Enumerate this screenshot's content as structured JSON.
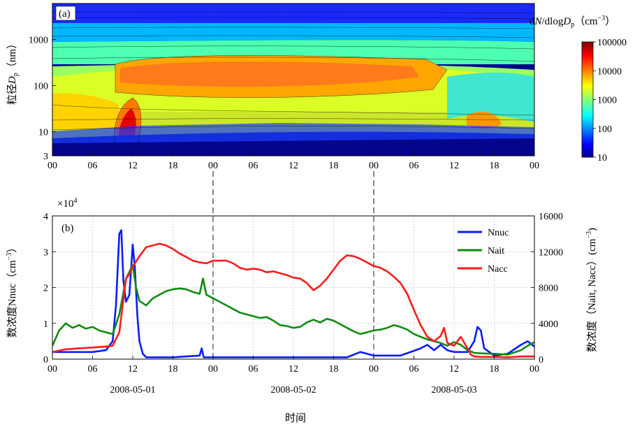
{
  "chart_data": [
    {
      "type": "heatmap",
      "panel_label": "(a)",
      "ylabel_prefix": "粒径",
      "ylabel_sym": "D",
      "ylabel_sub": "p",
      "ylabel_unit": "（nm）",
      "y_scale": "log",
      "ylim": [
        3,
        6000
      ],
      "yticks": [
        3,
        10,
        100,
        1000
      ],
      "ytick_labels": [
        "3",
        "10",
        "100",
        "1000"
      ],
      "xlim": [
        0,
        72
      ],
      "xticks": [
        0,
        6,
        12,
        18,
        24,
        30,
        36,
        42,
        48,
        54,
        60,
        66,
        72
      ],
      "xtick_labels": [
        "00",
        "06",
        "12",
        "18",
        "00",
        "06",
        "12",
        "18",
        "00",
        "06",
        "12",
        "18",
        "00"
      ],
      "colorbar": {
        "title_d": "d",
        "title_N": "N",
        "title_mid": "/dlog",
        "title_D": "D",
        "title_sub": "p",
        "title_unit_open": "（cm",
        "title_unit_sup": "−3",
        "title_unit_close": "）",
        "scale": "log",
        "ticks": [
          10,
          100,
          1000,
          10000,
          100000
        ],
        "tick_labels": [
          "10",
          "100",
          "1000",
          "10000",
          "100000"
        ],
        "colormap": "jet"
      },
      "grid": false
    },
    {
      "type": "line",
      "panel_label": "(b)",
      "x_unit": "hours since 2008-05-01 00:00",
      "xlim": [
        0,
        72
      ],
      "xticks": [
        0,
        6,
        12,
        18,
        24,
        30,
        36,
        42,
        48,
        54,
        60,
        66,
        72
      ],
      "xtick_labels": [
        "00",
        "06",
        "12",
        "18",
        "00",
        "06",
        "12",
        "18",
        "00",
        "06",
        "12",
        "18",
        "00"
      ],
      "date_labels": [
        {
          "x": 12,
          "text": "2008-05-01"
        },
        {
          "x": 36,
          "text": "2008-05-02"
        },
        {
          "x": 60,
          "text": "2008-05-03"
        }
      ],
      "xlabel": "时间",
      "ylabel_left": "数浓度Nnuc（cm",
      "ylabel_left_sup": "−3",
      "ylabel_left_close": "）",
      "ylabel_right": "数浓度（Nait, Nacc）(cm",
      "ylabel_right_sup": "−3",
      "ylabel_right_close": ")",
      "y_left_multiplier": "×10",
      "y_left_multiplier_exp": "4",
      "ylim_left": [
        0,
        4
      ],
      "yticks_left": [
        0,
        1,
        2,
        3,
        4
      ],
      "ylim_right": [
        0,
        16000
      ],
      "yticks_right": [
        0,
        4000,
        8000,
        12000,
        16000
      ],
      "grid": true,
      "legend_position": "top-right",
      "series": [
        {
          "name": "Nnuc",
          "color": "#0a1aff",
          "axis": "left",
          "points": [
            [
              0,
              0.2
            ],
            [
              3,
              0.2
            ],
            [
              6,
              0.2
            ],
            [
              8,
              0.25
            ],
            [
              9,
              0.5
            ],
            [
              9.5,
              1.5
            ],
            [
              10,
              3.5
            ],
            [
              10.3,
              3.6
            ],
            [
              10.6,
              2.2
            ],
            [
              11,
              1.6
            ],
            [
              11.5,
              1.8
            ],
            [
              12,
              3.2
            ],
            [
              12.3,
              2.6
            ],
            [
              12.7,
              1.2
            ],
            [
              13,
              0.5
            ],
            [
              13.5,
              0.15
            ],
            [
              14,
              0.05
            ],
            [
              18,
              0.05
            ],
            [
              22,
              0.1
            ],
            [
              22.3,
              0.3
            ],
            [
              22.6,
              0.05
            ],
            [
              30,
              0.05
            ],
            [
              36,
              0.05
            ],
            [
              44,
              0.05
            ],
            [
              46,
              0.2
            ],
            [
              48,
              0.1
            ],
            [
              52,
              0.1
            ],
            [
              55,
              0.3
            ],
            [
              56,
              0.4
            ],
            [
              57,
              0.25
            ],
            [
              58,
              0.4
            ],
            [
              59,
              0.25
            ],
            [
              60,
              0.2
            ],
            [
              62,
              0.2
            ],
            [
              63,
              0.5
            ],
            [
              63.5,
              0.9
            ],
            [
              64,
              0.8
            ],
            [
              64.5,
              0.3
            ],
            [
              66,
              0.1
            ],
            [
              68,
              0.15
            ],
            [
              70,
              0.4
            ],
            [
              71,
              0.5
            ],
            [
              72,
              0.35
            ]
          ]
        },
        {
          "name": "Nait",
          "color": "#0f8a0f",
          "axis": "right",
          "points": [
            [
              0,
              1500
            ],
            [
              1,
              3200
            ],
            [
              2,
              4000
            ],
            [
              3,
              3500
            ],
            [
              4,
              3800
            ],
            [
              5,
              3400
            ],
            [
              6,
              3600
            ],
            [
              7,
              3200
            ],
            [
              8,
              3000
            ],
            [
              9,
              2800
            ],
            [
              10,
              5000
            ],
            [
              11,
              9000
            ],
            [
              12,
              10500
            ],
            [
              12.5,
              8000
            ],
            [
              13,
              6500
            ],
            [
              14,
              6000
            ],
            [
              15,
              6800
            ],
            [
              16,
              7200
            ],
            [
              17,
              7600
            ],
            [
              18,
              7800
            ],
            [
              19,
              7900
            ],
            [
              20,
              7800
            ],
            [
              21,
              7500
            ],
            [
              22,
              7300
            ],
            [
              22.5,
              9000
            ],
            [
              23,
              7200
            ],
            [
              24,
              6800
            ],
            [
              25,
              6400
            ],
            [
              26,
              6000
            ],
            [
              27,
              5600
            ],
            [
              28,
              5200
            ],
            [
              29,
              5000
            ],
            [
              30,
              4800
            ],
            [
              31,
              4600
            ],
            [
              32,
              4700
            ],
            [
              33,
              4300
            ],
            [
              34,
              3800
            ],
            [
              35,
              3700
            ],
            [
              36,
              3500
            ],
            [
              37,
              3600
            ],
            [
              38,
              4100
            ],
            [
              39,
              4400
            ],
            [
              40,
              4100
            ],
            [
              41,
              4500
            ],
            [
              42,
              4300
            ],
            [
              43,
              3900
            ],
            [
              44,
              3500
            ],
            [
              45,
              3100
            ],
            [
              46,
              2800
            ],
            [
              47,
              3000
            ],
            [
              48,
              3200
            ],
            [
              49,
              3300
            ],
            [
              50,
              3500
            ],
            [
              51,
              3800
            ],
            [
              52,
              3600
            ],
            [
              53,
              3300
            ],
            [
              54,
              2800
            ],
            [
              55,
              2500
            ],
            [
              56,
              2200
            ],
            [
              57,
              2000
            ],
            [
              58,
              1800
            ],
            [
              59,
              1500
            ],
            [
              60,
              1900
            ],
            [
              61,
              1600
            ],
            [
              62,
              1000
            ],
            [
              63,
              700
            ],
            [
              64,
              650
            ],
            [
              65,
              620
            ],
            [
              66,
              600
            ],
            [
              68,
              500
            ],
            [
              70,
              1000
            ],
            [
              71,
              1500
            ],
            [
              72,
              1900
            ]
          ]
        },
        {
          "name": "Nacc",
          "color": "#ff1a1a",
          "axis": "right",
          "points": [
            [
              0,
              800
            ],
            [
              2,
              1100
            ],
            [
              4,
              1200
            ],
            [
              6,
              1300
            ],
            [
              8,
              1400
            ],
            [
              9,
              1500
            ],
            [
              10,
              3000
            ],
            [
              10.5,
              6000
            ],
            [
              11,
              9000
            ],
            [
              11.5,
              9500
            ],
            [
              12,
              10300
            ],
            [
              13,
              11500
            ],
            [
              14,
              12500
            ],
            [
              15,
              12700
            ],
            [
              16,
              12900
            ],
            [
              17,
              12700
            ],
            [
              18,
              12300
            ],
            [
              19,
              11800
            ],
            [
              20,
              11400
            ],
            [
              21,
              11000
            ],
            [
              22,
              10800
            ],
            [
              23,
              10700
            ],
            [
              24,
              11000
            ],
            [
              25,
              11000
            ],
            [
              26,
              11000
            ],
            [
              27,
              10700
            ],
            [
              28,
              10200
            ],
            [
              29,
              10000
            ],
            [
              30,
              10100
            ],
            [
              31,
              10000
            ],
            [
              32,
              9700
            ],
            [
              33,
              9800
            ],
            [
              34,
              9600
            ],
            [
              35,
              9400
            ],
            [
              36,
              9100
            ],
            [
              37,
              9000
            ],
            [
              38,
              8500
            ],
            [
              39,
              7700
            ],
            [
              40,
              8200
            ],
            [
              41,
              9000
            ],
            [
              42,
              10000
            ],
            [
              43,
              11000
            ],
            [
              44,
              11600
            ],
            [
              45,
              11500
            ],
            [
              46,
              11200
            ],
            [
              47,
              10800
            ],
            [
              48,
              10400
            ],
            [
              49,
              10200
            ],
            [
              50,
              9800
            ],
            [
              51,
              9200
            ],
            [
              52,
              8500
            ],
            [
              53,
              7300
            ],
            [
              54,
              5500
            ],
            [
              55,
              3800
            ],
            [
              56,
              2500
            ],
            [
              57,
              2000
            ],
            [
              58,
              2600
            ],
            [
              58.5,
              3500
            ],
            [
              59,
              1800
            ],
            [
              60,
              1500
            ],
            [
              61,
              2500
            ],
            [
              62,
              1200
            ],
            [
              62.5,
              500
            ],
            [
              63,
              300
            ],
            [
              64,
              250
            ],
            [
              66,
              250
            ],
            [
              68,
              200
            ],
            [
              70,
              300
            ],
            [
              72,
              300
            ]
          ]
        }
      ]
    }
  ]
}
